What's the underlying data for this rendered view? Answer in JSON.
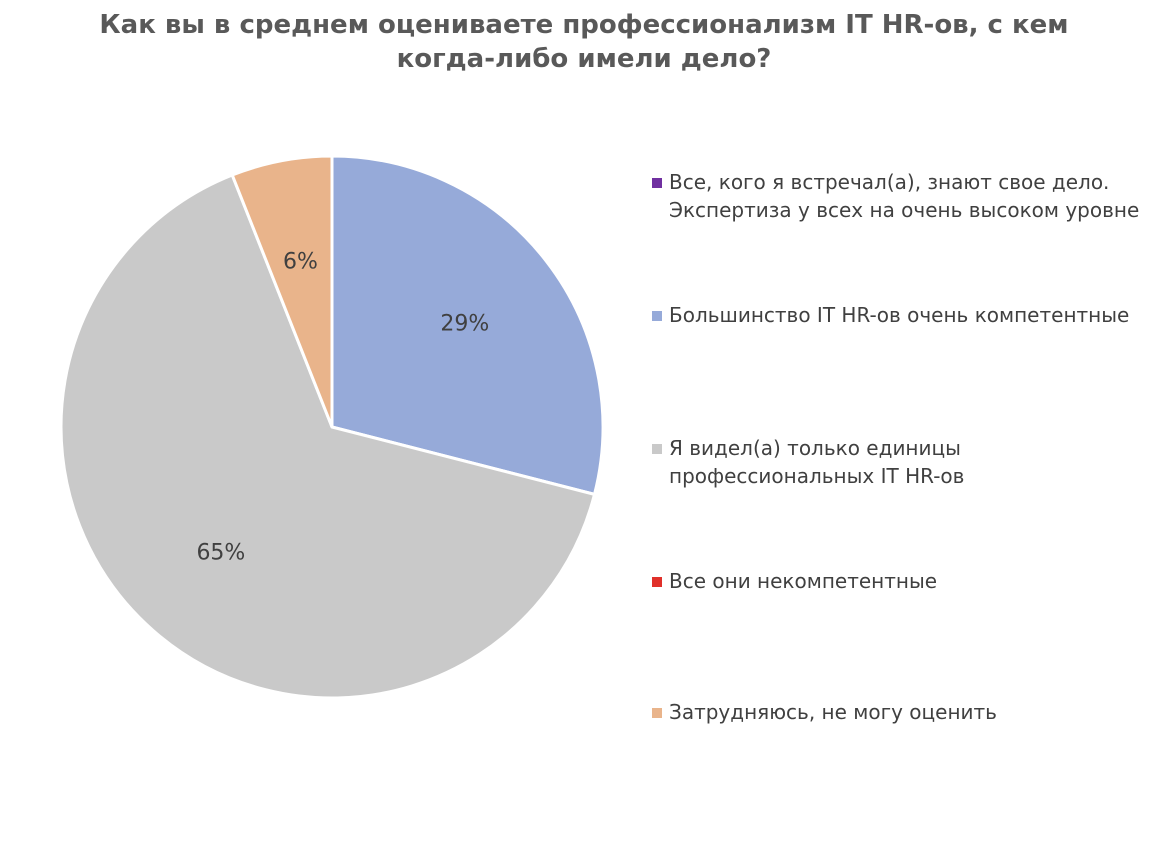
{
  "chart_data": {
    "type": "pie",
    "title": "Как вы в среднем оцениваете профессионализм IT HR-ов, с кем когда-либо имели дело?",
    "slices": [
      {
        "name": "Все, кого я встречал(а), знают свое дело. Экспертиза у всех на очень высоком уровне",
        "value": 0,
        "label": "",
        "color": "#7030a0"
      },
      {
        "name": "Большинство IT HR-ов очень компетентные",
        "value": 29,
        "label": "29%",
        "color": "#96aad9"
      },
      {
        "name": "Я видел(а) только единицы профессиональных IT HR-ов",
        "value": 65,
        "label": "65%",
        "color": "#c9c9c9"
      },
      {
        "name": "Все они некомпетентные",
        "value": 0,
        "label": "",
        "color": "#e0302a"
      },
      {
        "name": "Затрудняюсь, не могу оценить",
        "value": 6,
        "label": "6%",
        "color": "#e9b48b"
      }
    ],
    "legend_position": "right"
  }
}
